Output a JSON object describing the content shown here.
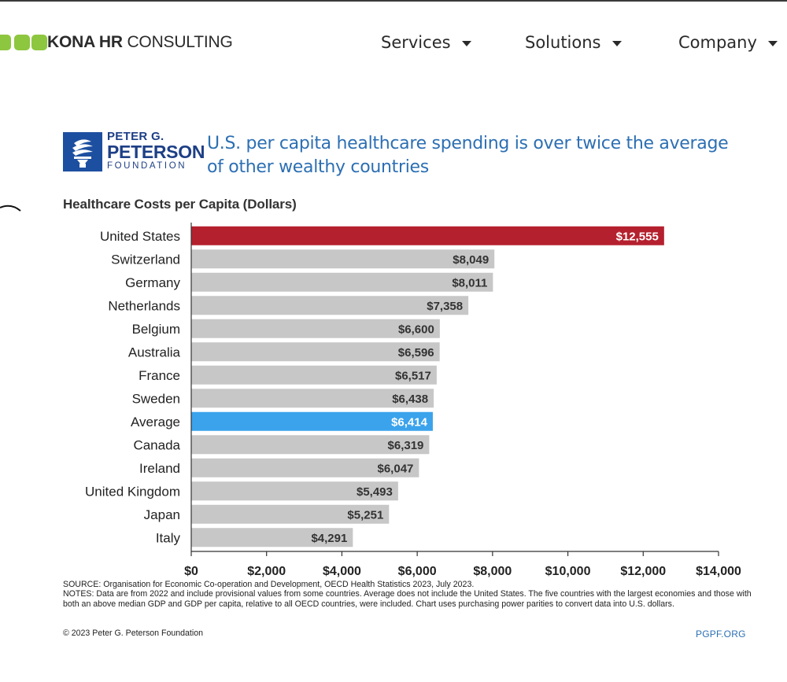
{
  "header": {
    "brand_bold": "KONA HR",
    "brand_rest": " CONSULTING",
    "brand_colors": [
      "#8dc63f",
      "#8dc63f",
      "#8dc63f"
    ],
    "nav": [
      {
        "label": "Services"
      },
      {
        "label": "Solutions"
      },
      {
        "label": "Company"
      }
    ]
  },
  "foundation": {
    "line1": "PETER G.",
    "line2": "PETERSON",
    "line3": "FOUNDATION",
    "brand_color": "#1d4fa0"
  },
  "headline": {
    "line1": "U.S. per capita healthcare spending is over twice the average",
    "line2": "of other wealthy countries"
  },
  "chart_data": {
    "type": "bar",
    "orientation": "horizontal",
    "title": "Healthcare Costs per Capita (Dollars)",
    "categories": [
      "United States",
      "Switzerland",
      "Germany",
      "Netherlands",
      "Belgium",
      "Australia",
      "France",
      "Sweden",
      "Average",
      "Canada",
      "Ireland",
      "United Kingdom",
      "Japan",
      "Italy"
    ],
    "values": [
      12555,
      8049,
      8011,
      7358,
      6600,
      6596,
      6517,
      6438,
      6414,
      6319,
      6047,
      5493,
      5251,
      4291
    ],
    "value_labels": [
      "$12,555",
      "$8,049",
      "$8,011",
      "$7,358",
      "$6,600",
      "$6,596",
      "$6,517",
      "$6,438",
      "$6,414",
      "$6,319",
      "$6,047",
      "$5,493",
      "$5,251",
      "$4,291"
    ],
    "highlight": {
      "United States": "#b5202e",
      "Average": "#3ba3ec"
    },
    "default_color": "#c7c7c7",
    "xlim": [
      0,
      14000
    ],
    "xticks": [
      0,
      2000,
      4000,
      6000,
      8000,
      10000,
      12000,
      14000
    ],
    "xtick_labels": [
      "$0",
      "$2,000",
      "$4,000",
      "$6,000",
      "$8,000",
      "$10,000",
      "$12,000",
      "$14,000"
    ],
    "grid": false,
    "xlabel": "",
    "ylabel": ""
  },
  "notes": {
    "source": "SOURCE: Organisation for Economic Co-operation and Development, OECD Health Statistics 2023, July 2023.",
    "notes": "NOTES: Data are from 2022 and include provisional values from some countries. Average does not include the United States. The five countries with the largest economies and those with both an above median GDP and GDP per capita, relative to all OECD countries, were included. Chart uses purchasing power parities to convert data into U.S. dollars.",
    "copyright": "© 2023 Peter G. Peterson Foundation",
    "site": "PGPF.ORG"
  }
}
